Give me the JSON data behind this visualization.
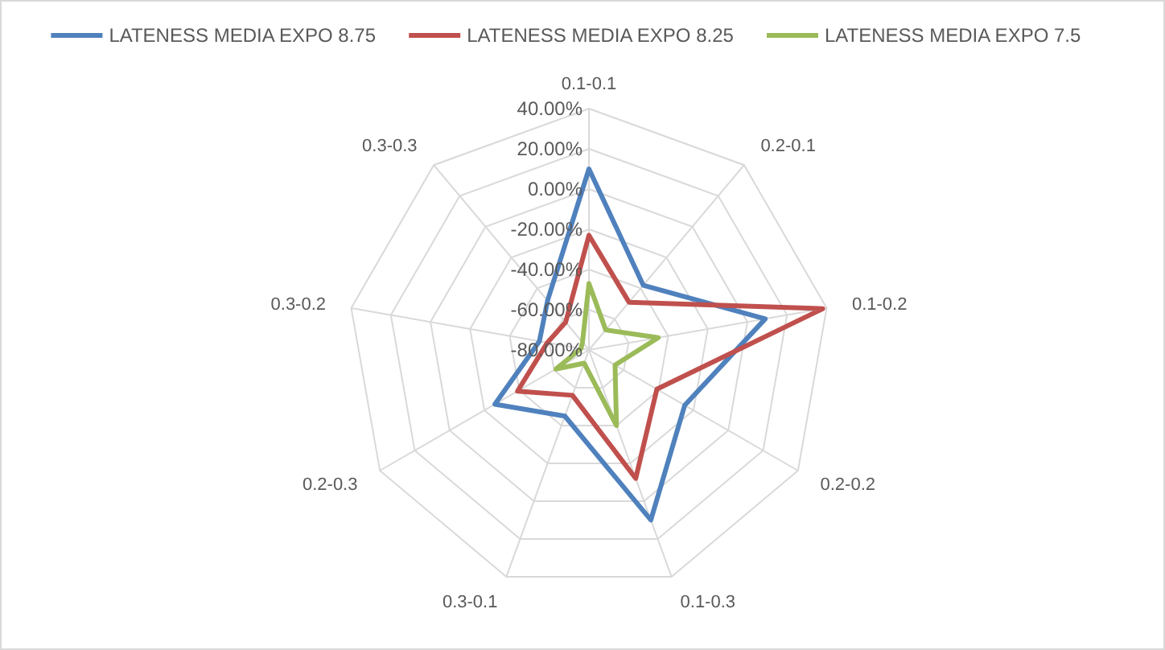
{
  "chart_data": {
    "type": "radar",
    "categories": [
      "0.1-0.1",
      "0.2-0.1",
      "0.1-0.2",
      "0.2-0.2",
      "0.1-0.3",
      "0.3-0.1",
      "0.2-0.3",
      "0.3-0.2",
      "0.3-0.3"
    ],
    "series": [
      {
        "name": "LATENESS MEDIA EXPO 8.75",
        "color": "#4f81bd",
        "values": [
          10,
          -38,
          9,
          -25,
          10,
          -45,
          -26,
          -55,
          -48
        ]
      },
      {
        "name": "LATENESS MEDIA EXPO 8.25",
        "color": "#c0504d",
        "values": [
          -23,
          -49,
          38,
          -41,
          -12,
          -56,
          -39,
          -59,
          -62
        ]
      },
      {
        "name": "LATENESS MEDIA EXPO 7.5",
        "color": "#9bbb59",
        "values": [
          -47,
          -67,
          -45,
          -65,
          -40,
          -73,
          -61,
          -76,
          -75
        ]
      }
    ],
    "ylim": [
      -80,
      40
    ],
    "yticks": [
      {
        "value": -80,
        "label": "-80.00%"
      },
      {
        "value": -60,
        "label": "-60.00%"
      },
      {
        "value": -40,
        "label": "-40.00%"
      },
      {
        "value": -20,
        "label": "-20.00%"
      },
      {
        "value": 0,
        "label": "0.00%"
      },
      {
        "value": 20,
        "label": "20.00%"
      },
      {
        "value": 40,
        "label": "40.00%"
      }
    ],
    "grid": true,
    "legend": "top"
  }
}
